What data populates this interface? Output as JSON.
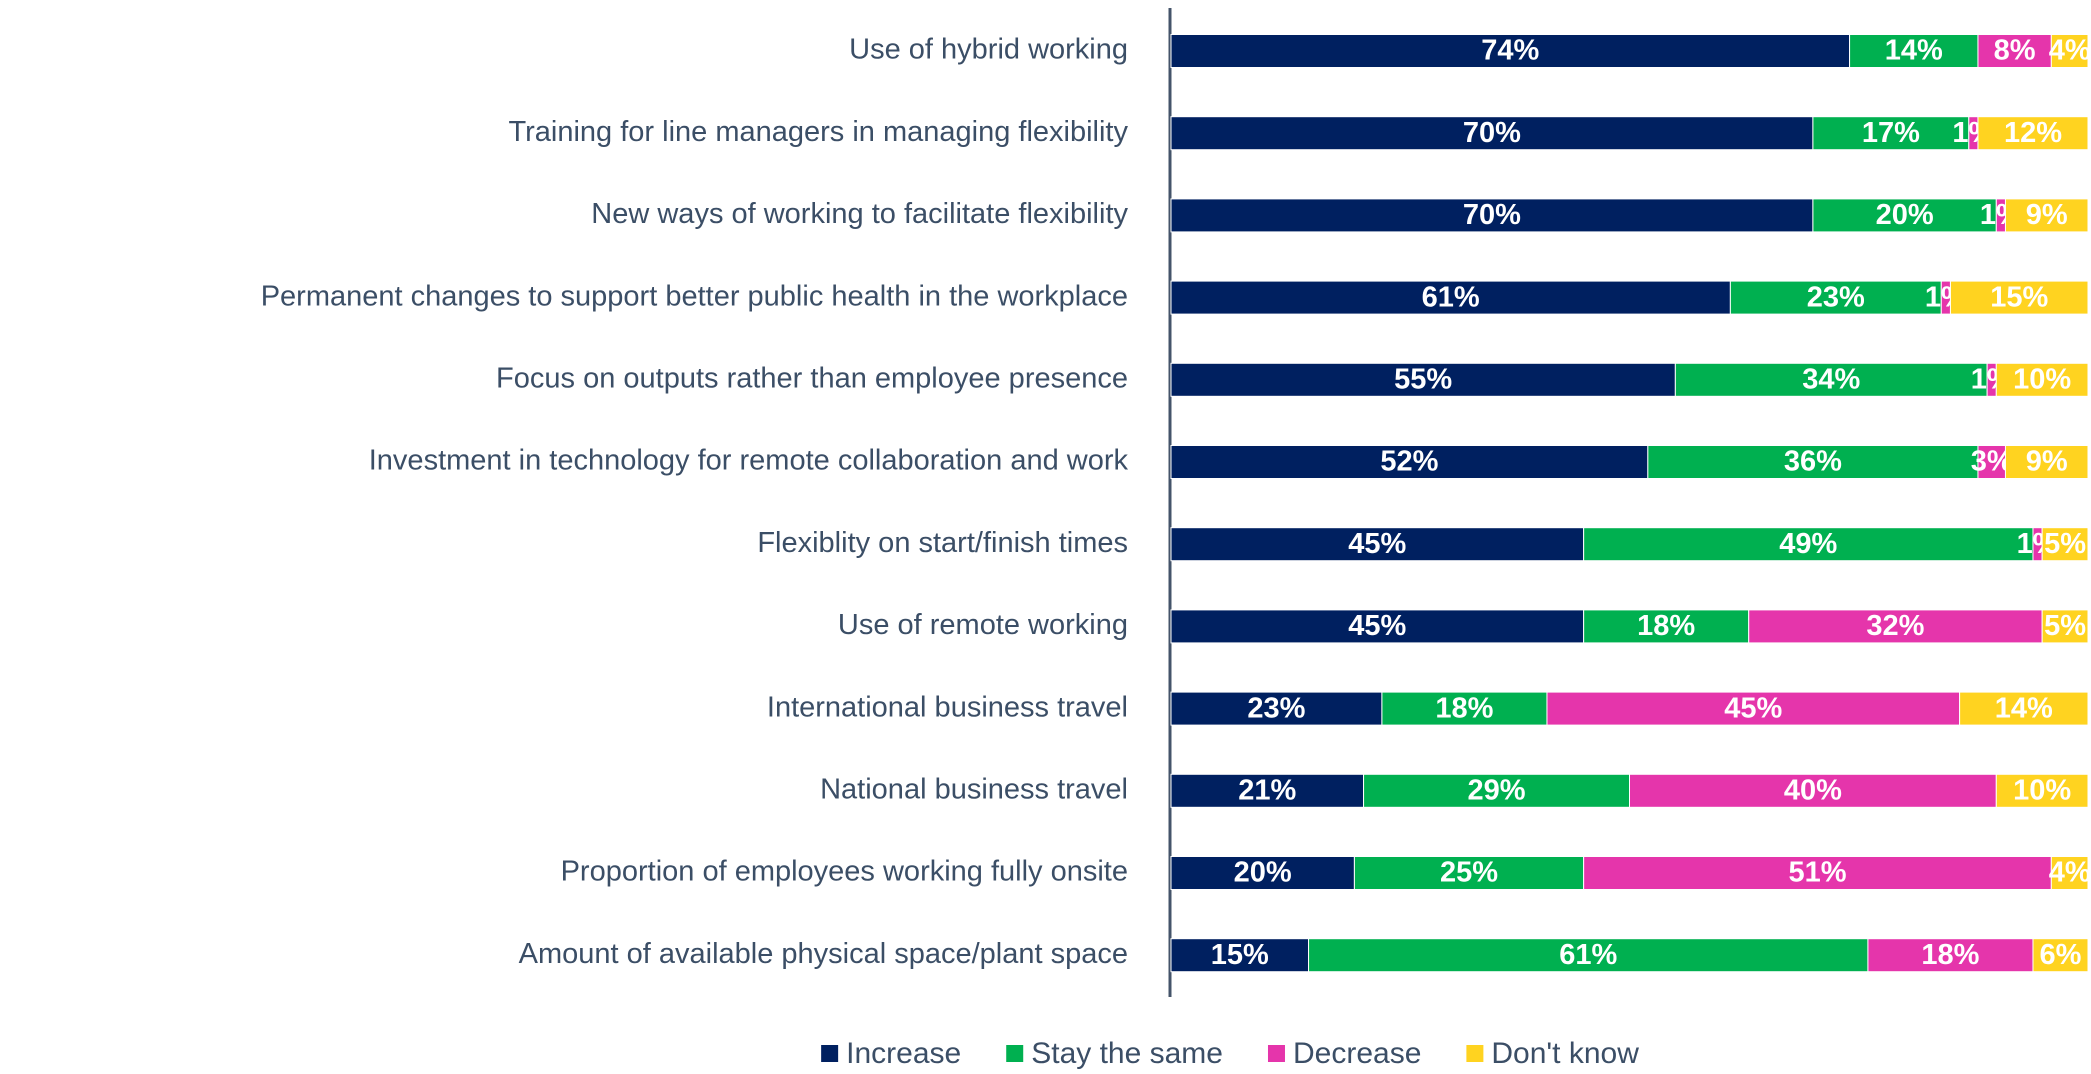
{
  "chart_data": {
    "type": "stacked_barh",
    "categories": [
      "Use of hybrid working",
      "Training for line managers in managing flexibility",
      "New ways of working to facilitate flexibility",
      "Permanent changes to support better public health in the workplace",
      "Focus on outputs rather than employee presence",
      "Investment in technology for remote collaboration and work",
      "Flexiblity on start/finish times",
      "Use of remote working",
      "International business travel",
      "National business travel",
      "Proportion of employees working fully onsite",
      "Amount of available physical space/plant space"
    ],
    "xlim": [
      0,
      100
    ],
    "series": [
      {
        "name": "Increase",
        "color": "#002060",
        "values": [
          74,
          70,
          70,
          61,
          55,
          52,
          45,
          45,
          23,
          21,
          20,
          15
        ],
        "value_labels": [
          "74%",
          "70%",
          "70%",
          "61%",
          "55%",
          "52%",
          "45%",
          "45%",
          "23%",
          "21%",
          "20%",
          "15%"
        ]
      },
      {
        "name": "Stay the same",
        "color": "#00b050",
        "values": [
          14,
          17,
          20,
          23,
          34,
          36,
          49,
          18,
          18,
          29,
          25,
          61
        ],
        "value_labels": [
          "14%",
          "17%",
          "20%",
          "23%",
          "34%",
          "36%",
          "49%",
          "18%",
          "18%",
          "29%",
          "25%",
          "61%"
        ]
      },
      {
        "name": "Decrease",
        "color": "#e535ab",
        "values": [
          8,
          1,
          1,
          1,
          1,
          3,
          1,
          32,
          45,
          40,
          51,
          18
        ],
        "value_labels": [
          "8%",
          "1%",
          "1%",
          "1%",
          "1%",
          "3%",
          "1%",
          "32%",
          "45%",
          "40%",
          "51%",
          "18%"
        ]
      },
      {
        "name": "Don't know",
        "color": "#ffd320",
        "values": [
          4,
          12,
          9,
          15,
          10,
          9,
          5,
          5,
          14,
          10,
          4,
          6
        ],
        "value_labels": [
          "4%",
          "12%",
          "9%",
          "15%",
          "10%",
          "9%",
          "5%",
          "5%",
          "14%",
          "10%",
          "4%",
          "6%"
        ]
      }
    ],
    "legend": "bottom"
  }
}
